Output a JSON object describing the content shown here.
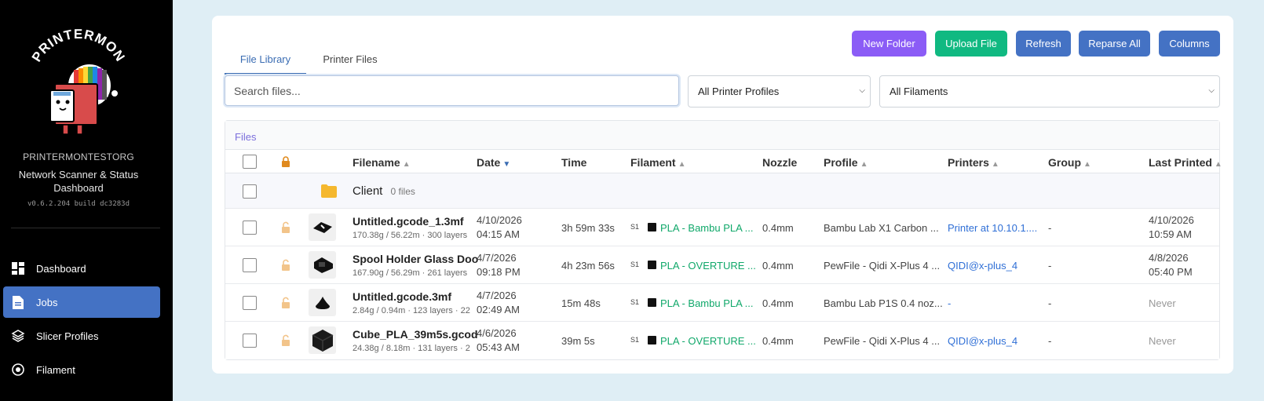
{
  "brand": {
    "name": "PRINTERMONTESTORG",
    "subtitle": "Network Scanner & Status Dashboard",
    "version": "v0.6.2.204 build dc3283d",
    "logo_text": "PRINTERMON"
  },
  "nav": [
    {
      "label": "Dashboard",
      "icon": "dashboard-icon",
      "active": false
    },
    {
      "label": "Jobs",
      "icon": "jobs-icon",
      "active": true
    },
    {
      "label": "Slicer Profiles",
      "icon": "layers-icon",
      "active": false
    },
    {
      "label": "Filament",
      "icon": "filament-icon",
      "active": false
    }
  ],
  "tabs": [
    {
      "label": "File Library",
      "active": true
    },
    {
      "label": "Printer Files",
      "active": false
    }
  ],
  "actions": {
    "new_folder": "New Folder",
    "upload_file": "Upload File",
    "refresh": "Refresh",
    "reparse_all": "Reparse All",
    "columns": "Columns"
  },
  "search": {
    "placeholder": "Search files...",
    "value": ""
  },
  "filters": {
    "printer_profile": "All Printer Profiles",
    "filament": "All Filaments"
  },
  "panel_title": "Files",
  "columns": [
    "Filename",
    "Date",
    "Time",
    "Filament",
    "Nozzle",
    "Profile",
    "Printers",
    "Group",
    "Last Printed"
  ],
  "folder": {
    "name": "Client",
    "count": "0 files"
  },
  "files": [
    {
      "name": "Untitled.gcode_1.3mf",
      "meta": "170.38g / 56.22m · 300 layers",
      "date": "4/10/2026",
      "date_time": "04:15 AM",
      "time": "3h 59m 33s",
      "slot": "S1",
      "filament": "PLA - Bambu PLA ...",
      "nozzle": "0.4mm",
      "profile": "Bambu Lab X1 Carbon ...",
      "printers": "Printer at 10.10.1....",
      "group": "-",
      "last_printed": "4/10/2026",
      "last_printed_time": "10:59 AM"
    },
    {
      "name": "Spool Holder Glass Doo",
      "meta": "167.90g / 56.29m · 261 layers",
      "date": "4/7/2026",
      "date_time": "09:18 PM",
      "time": "4h 23m 56s",
      "slot": "S1",
      "filament": "PLA - OVERTURE ...",
      "nozzle": "0.4mm",
      "profile": "PewFile - Qidi X-Plus 4 ...",
      "printers": "QIDI@x-plus_4",
      "group": "-",
      "last_printed": "4/8/2026",
      "last_printed_time": "05:40 PM"
    },
    {
      "name": "Untitled.gcode.3mf",
      "meta": "2.84g / 0.94m · 123 layers · 22",
      "date": "4/7/2026",
      "date_time": "02:49 AM",
      "time": "15m 48s",
      "slot": "S1",
      "filament": "PLA - Bambu PLA ...",
      "nozzle": "0.4mm",
      "profile": "Bambu Lab P1S 0.4 noz...",
      "printers": "-",
      "group": "-",
      "last_printed": "Never",
      "last_printed_time": ""
    },
    {
      "name": "Cube_PLA_39m5s.gcod",
      "meta": "24.38g / 8.18m · 131 layers · 2",
      "date": "4/6/2026",
      "date_time": "05:43 AM",
      "time": "39m 5s",
      "slot": "S1",
      "filament": "PLA - OVERTURE ...",
      "nozzle": "0.4mm",
      "profile": "PewFile - Qidi X-Plus 4 ...",
      "printers": "QIDI@x-plus_4",
      "group": "-",
      "last_printed": "Never",
      "last_printed_time": ""
    }
  ],
  "colors": {
    "sidebar_bg": "#000000",
    "accent_blue": "#4472c4",
    "purple": "#8b5cf6",
    "green": "#10b981",
    "link": "#2f6fd6",
    "filament_text": "#10a86a"
  }
}
